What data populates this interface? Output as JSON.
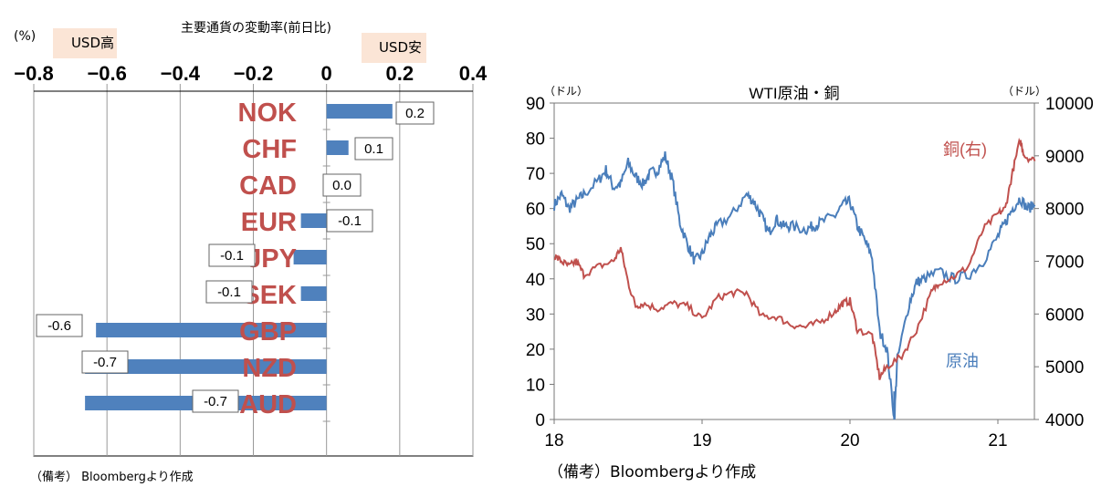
{
  "chart_data": [
    {
      "type": "bar",
      "orientation": "horizontal",
      "title": "主要通貨の変動率(前日比)",
      "unit": "(%)",
      "left_annotation": "USD高",
      "right_annotation": "USD安",
      "xlim": [
        -0.8,
        0.4
      ],
      "ticks": [
        "−0.8",
        "−0.6",
        "−0.4",
        "−0.2",
        "0",
        "0.2",
        "0.4"
      ],
      "tick_values": [
        -0.8,
        -0.6,
        -0.4,
        -0.2,
        0,
        0.2,
        0.4
      ],
      "grid": true,
      "bar_color": "#4f81bd",
      "category_color": "#c0504d",
      "categories": [
        "NOK",
        "CHF",
        "CAD",
        "EUR",
        "JPY",
        "SEK",
        "GBP",
        "NZD",
        "AUD"
      ],
      "values": [
        0.18,
        0.06,
        0.0,
        -0.07,
        -0.09,
        -0.07,
        -0.63,
        -0.66,
        -0.66
      ],
      "data_labels": [
        "0.2",
        "0.1",
        "0.0",
        "-0.1",
        "-0.1",
        "-0.1",
        "-0.6",
        "-0.7",
        "-0.7"
      ],
      "note": "（備考） Bloombergより作成"
    },
    {
      "type": "line",
      "title": "WTI原油・銅",
      "left_unit": "（ドル）",
      "right_unit": "（ドル）",
      "ylim_left": [
        0,
        90
      ],
      "ylim_right": [
        4000,
        10000
      ],
      "xlim": [
        18,
        21.25
      ],
      "xticks": [
        "18",
        "19",
        "20",
        "21"
      ],
      "yticks_left": [
        "0",
        "10",
        "20",
        "30",
        "40",
        "50",
        "60",
        "70",
        "80",
        "90"
      ],
      "yticks_right": [
        "4000",
        "5000",
        "6000",
        "7000",
        "8000",
        "9000",
        "10000"
      ],
      "grid": false,
      "series": [
        {
          "name": "原油",
          "axis": "left",
          "color": "#4a7ebb",
          "x": [
            18.0,
            18.05,
            18.1,
            18.15,
            18.2,
            18.3,
            18.35,
            18.4,
            18.45,
            18.5,
            18.55,
            18.6,
            18.65,
            18.7,
            18.75,
            18.8,
            18.85,
            18.9,
            18.95,
            19.0,
            19.05,
            19.1,
            19.2,
            19.3,
            19.35,
            19.4,
            19.45,
            19.5,
            19.55,
            19.6,
            19.7,
            19.75,
            19.8,
            19.9,
            19.95,
            20.0,
            20.05,
            20.1,
            20.15,
            20.2,
            20.25,
            20.3,
            20.32,
            20.4,
            20.45,
            20.5,
            20.6,
            20.7,
            20.8,
            20.9,
            21.0,
            21.05,
            21.1,
            21.15,
            21.2,
            21.25
          ],
          "y": [
            61,
            64,
            60,
            62,
            64,
            68,
            71,
            66,
            67,
            73,
            69,
            67,
            70,
            71,
            75,
            68,
            56,
            50,
            45,
            47,
            52,
            55,
            58,
            64,
            62,
            58,
            53,
            57,
            55,
            55,
            54,
            55,
            56,
            58,
            61,
            62,
            55,
            51,
            46,
            25,
            20,
            0,
            17,
            33,
            39,
            40,
            42,
            40,
            41,
            45,
            52,
            56,
            60,
            63,
            60,
            61
          ]
        },
        {
          "name": "銅(右)",
          "axis": "right",
          "color": "#c0504d",
          "x": [
            18.0,
            18.05,
            18.1,
            18.15,
            18.2,
            18.3,
            18.4,
            18.45,
            18.5,
            18.55,
            18.6,
            18.7,
            18.8,
            18.9,
            19.0,
            19.1,
            19.2,
            19.3,
            19.4,
            19.5,
            19.6,
            19.7,
            19.8,
            19.9,
            19.95,
            20.0,
            20.05,
            20.15,
            20.2,
            20.25,
            20.35,
            20.45,
            20.55,
            20.6,
            20.7,
            20.8,
            20.9,
            21.0,
            21.05,
            21.1,
            21.15,
            21.18,
            21.25
          ],
          "y": [
            7100,
            7000,
            6900,
            7000,
            6750,
            6900,
            7000,
            7250,
            6600,
            6150,
            6200,
            6100,
            6200,
            6150,
            5900,
            6300,
            6400,
            6400,
            5950,
            5950,
            5800,
            5750,
            5850,
            6050,
            6200,
            6250,
            5700,
            5600,
            4800,
            5000,
            5200,
            5700,
            6400,
            6600,
            6700,
            6900,
            7600,
            7900,
            8000,
            8700,
            9300,
            9000,
            8900
          ]
        }
      ],
      "note": "（備考）Bloombergより作成"
    }
  ]
}
